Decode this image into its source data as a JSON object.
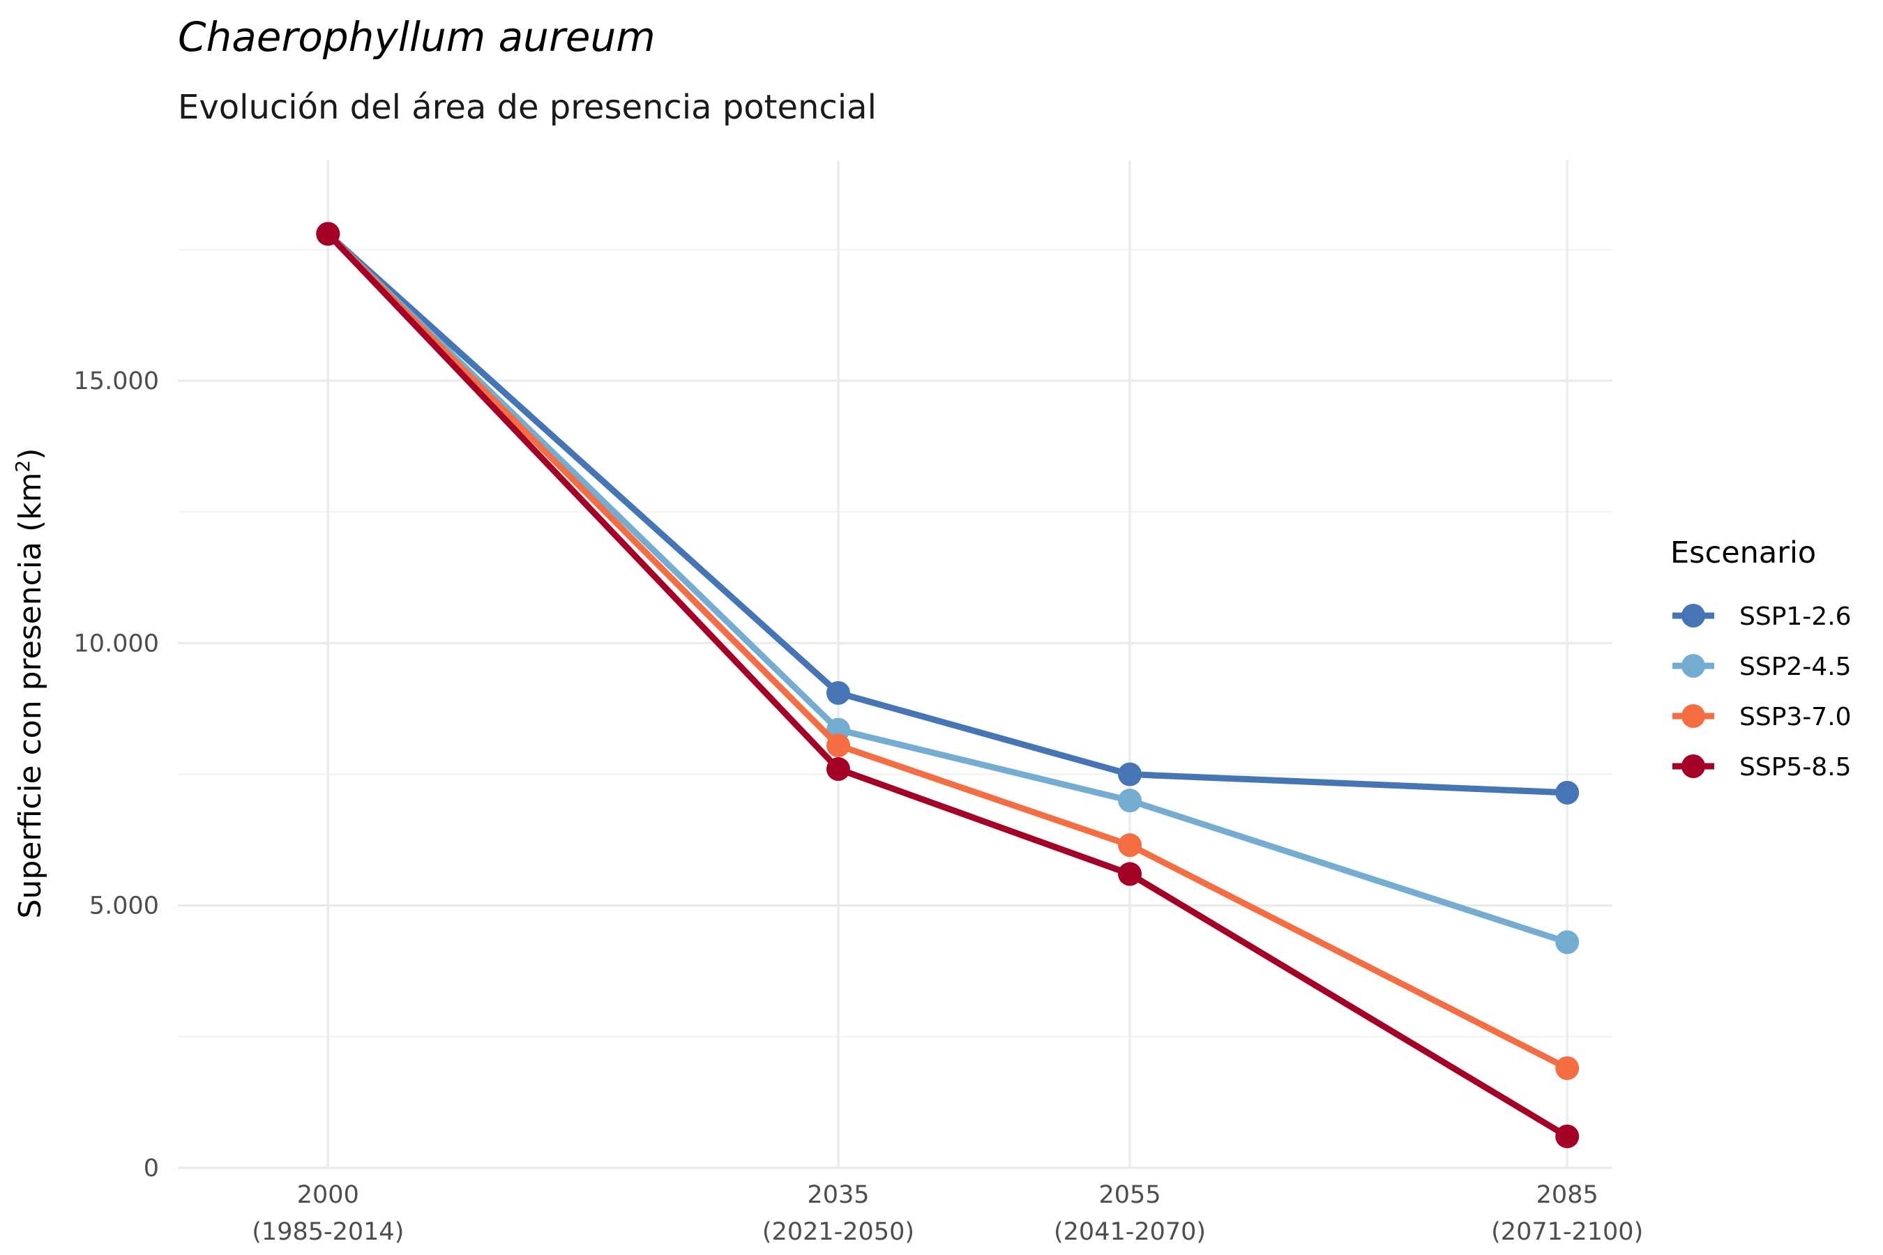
{
  "chart_data": {
    "type": "line",
    "title": "Chaerophyllum aureum",
    "subtitle": "Evolución del área de presencia potencial",
    "ylabel": "Superficie con presencia (km",
    "ylabel_sup": "2",
    "ylabel_close": ")",
    "xlabel": "",
    "x": [
      2000,
      2035,
      2055,
      2085
    ],
    "x_tick_labels": [
      {
        "year": "2000",
        "period": "(1985-2014)"
      },
      {
        "year": "2035",
        "period": "(2021-2050)"
      },
      {
        "year": "2055",
        "period": "(2041-2070)"
      },
      {
        "year": "2085",
        "period": "(2071-2100)"
      }
    ],
    "xlim": [
      1989.7,
      2088.1
    ],
    "ylim": [
      0,
      19200
    ],
    "y_ticks": [
      0,
      5000,
      10000,
      15000
    ],
    "y_tick_labels": [
      "0",
      "5.000",
      "10.000",
      "15.000"
    ],
    "grid": true,
    "legend_title": "Escenario",
    "legend_position": "right",
    "series": [
      {
        "name": "SSP1-2.6",
        "color": "#4575b4",
        "values": [
          17800,
          9050,
          7500,
          7150
        ]
      },
      {
        "name": "SSP2-4.5",
        "color": "#74add1",
        "values": [
          17800,
          8350,
          7000,
          4300
        ]
      },
      {
        "name": "SSP3-7.0",
        "color": "#f46d43",
        "values": [
          17800,
          8050,
          6150,
          1900
        ]
      },
      {
        "name": "SSP5-8.5",
        "color": "#a50026",
        "values": [
          17800,
          7600,
          5600,
          600
        ]
      }
    ]
  }
}
